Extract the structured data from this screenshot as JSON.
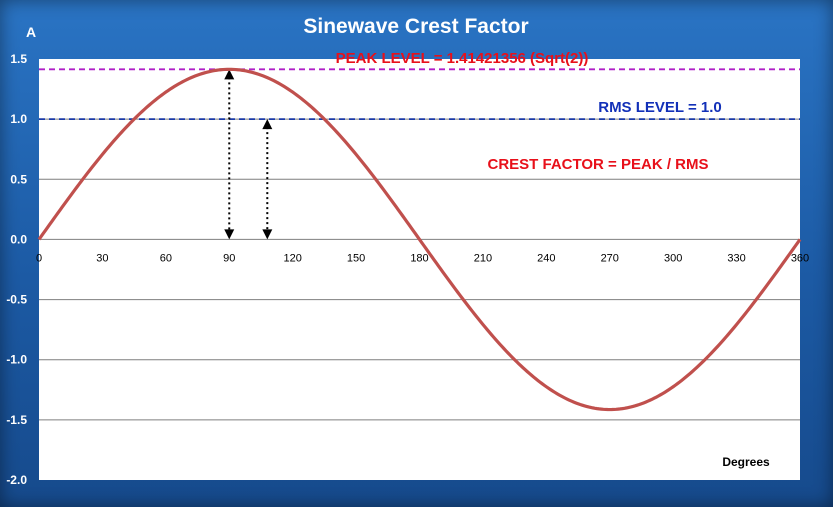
{
  "chart_data": {
    "type": "line",
    "title": "Sinewave Crest Factor",
    "ylabel": "A",
    "xlabel": "Degrees",
    "xlim": [
      0,
      360
    ],
    "ylim": [
      -2.0,
      1.5
    ],
    "x_ticks": [
      "0",
      "30",
      "60",
      "90",
      "120",
      "150",
      "180",
      "210",
      "240",
      "270",
      "300",
      "330",
      "360"
    ],
    "x_tick_values": [
      0,
      30,
      60,
      90,
      120,
      150,
      180,
      210,
      240,
      270,
      300,
      330,
      360
    ],
    "y_ticks": [
      "1.5",
      "1.0",
      "0.5",
      "0.0",
      "-0.5",
      "-1.0",
      "-1.5",
      "-2.0"
    ],
    "y_tick_values": [
      1.5,
      1.0,
      0.5,
      0.0,
      -0.5,
      -1.0,
      -1.5,
      -2.0
    ],
    "grid": true,
    "series": [
      {
        "color": "#c0504d",
        "function": "sin",
        "amplitude": 1.41421356,
        "x": [
          0,
          15,
          30,
          45,
          60,
          75,
          90,
          105,
          120,
          135,
          150,
          165,
          180,
          195,
          210,
          225,
          240,
          255,
          270,
          285,
          300,
          315,
          330,
          345,
          360
        ],
        "y": [
          0,
          0.366,
          0.707,
          1.0,
          1.225,
          1.366,
          1.414,
          1.366,
          1.225,
          1.0,
          0.707,
          0.366,
          0,
          -0.366,
          -0.707,
          -1.0,
          -1.225,
          -1.366,
          -1.414,
          -1.366,
          -1.225,
          -1.0,
          -0.707,
          -0.366,
          0
        ]
      }
    ],
    "reference_lines": [
      {
        "y": 1.41421356,
        "color": "#b020c8",
        "style": "dashed"
      },
      {
        "y": 1.0,
        "color": "#1a3aa8",
        "style": "dashed"
      }
    ],
    "arrows": [
      {
        "x": 90,
        "from": 0,
        "to": 1.41421356
      },
      {
        "x": 108,
        "from": 0,
        "to": 1.0
      }
    ],
    "annotations": {
      "peak": "PEAK LEVEL = 1.41421356 (Sqrt(2))",
      "rms": "RMS LEVEL = 1.0",
      "crest": "CREST FACTOR = PEAK / RMS"
    },
    "colors": {
      "background": "#1f5fa8",
      "plot_area": "#ffffff",
      "gridline": "#7f7f7f"
    }
  }
}
